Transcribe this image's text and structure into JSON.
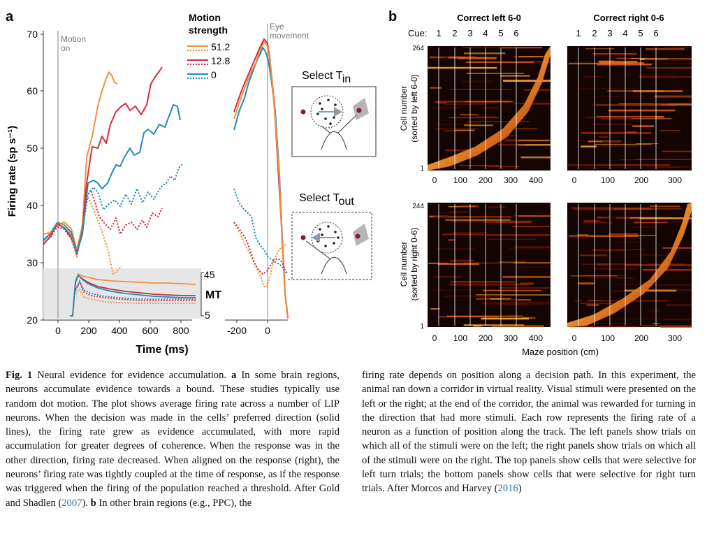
{
  "panel_a": {
    "label": "a",
    "legend": {
      "title_line1": "Motion",
      "title_line2": "strength",
      "entries": [
        "51.2",
        "12.8",
        "0"
      ]
    },
    "annotations": {
      "motion_on_line1": "Motion",
      "motion_on_line2": "on",
      "eye_move_line1": "Eye",
      "eye_move_line2": "movement",
      "mt_label": "MT",
      "mt_tick_top": "45",
      "mt_tick_bottom": "5",
      "select_tin": "Select T",
      "select_tin_sub": "in",
      "select_tout": "Select T",
      "select_tout_sub": "out"
    },
    "y_axis": {
      "label": "Firing rate (sp s⁻¹)",
      "ticks": [
        "70",
        "60",
        "50",
        "40",
        "30",
        "20"
      ]
    },
    "x_axis_left": {
      "ticks": [
        "0",
        "200",
        "400",
        "600",
        "800"
      ]
    },
    "x_axis_right": {
      "ticks": [
        "-200",
        "0"
      ]
    },
    "x_label": "Time (ms)",
    "colors": {
      "s512": "#f0913a",
      "s128": "#d42b3a",
      "s0": "#1f8ac0"
    }
  },
  "panel_b": {
    "label": "b",
    "col_titles": [
      "Correct left 6-0",
      "Correct right 0-6"
    ],
    "cue_label": "Cue:",
    "cue_ticks": [
      "1",
      "2",
      "3",
      "4",
      "5",
      "6"
    ],
    "top_row": {
      "ylabel1": "Cell number",
      "ylabel2": "(sorted by left 6-0)",
      "ymax": "264",
      "ymin": "1"
    },
    "bottom_row": {
      "ylabel1": "Cell number",
      "ylabel2": "(sorted by right 0-6)",
      "ymax": "244",
      "ymin": "1"
    },
    "x_ticks_left": [
      "0",
      "100",
      "200",
      "300",
      "400"
    ],
    "x_ticks_right": [
      "0",
      "100",
      "200",
      "300"
    ],
    "x_label": "Maze position (cm)"
  },
  "caption": {
    "fig_label": "Fig. 1",
    "left_text_1": "Neural evidence for evidence accumulation.",
    "left_bold_a": "a",
    "left_text_2": "In some brain regions, neurons accumulate evidence towards a bound. These studies typically use random dot motion. The plot shows average firing rate across a number of LIP neurons. When the decision was made in the cells’ preferred direction (solid lines), the firing rate grew as evidence accumulated, with more rapid accumulation for greater degrees of coherence. When the response was in the other direction, firing rate decreased. When aligned on the response (right), the neurons’ firing rate was tightly coupled at the time of response, as if the response was triggered when the firing of the population reached a threshold. After Gold and Shadlen (",
    "left_ref_year": "2007",
    "left_text_3": ").",
    "left_bold_b": "b",
    "left_text_4": "In other brain regions (e.g., PPC), the",
    "right_text_1": "firing rate depends on position along a decision path. In this experiment, the animal ran down a corridor in virtual reality. Visual stimuli were presented on the left or the right; at the end of the corridor, the animal was rewarded for turning in the direction that had more stimuli. Each row represents the firing rate of a neuron as a function of position along the track. The left panels show trials on which all of the stimuli were on the left; the right panels show trials on which all of the stimuli were on the right. The top panels show cells that were selective for left turn trials; the bottom panels show cells that were selective for right turn trials. After Morcos and Harvey (",
    "right_ref_year": "2016",
    "right_text_2": ")"
  }
}
